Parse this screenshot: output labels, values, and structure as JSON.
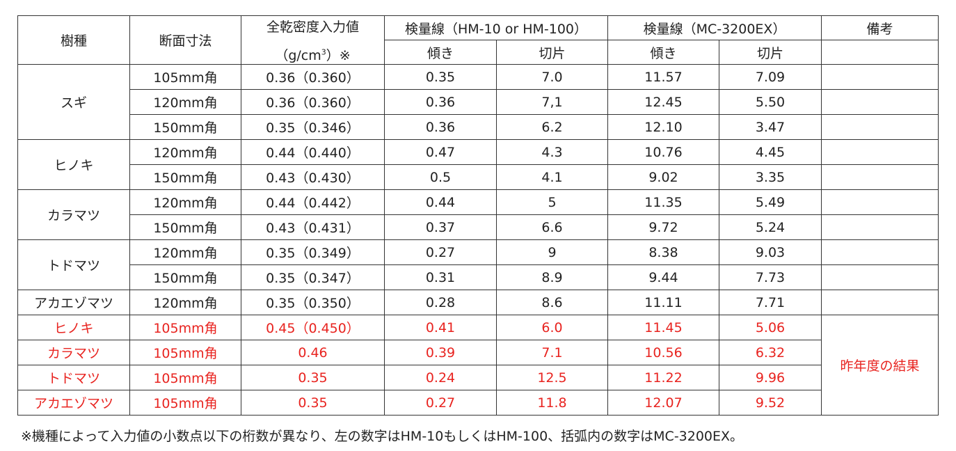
{
  "header": {
    "species": "樹種",
    "section": "断面寸法",
    "density_line1": "全乾密度入力値",
    "density_unit_pre": "（g/cm",
    "density_unit_sup": "3",
    "density_unit_post": "）※",
    "hm": "検量線（HM-10 or HM-100）",
    "mc": "検量線（MC-3200EX）",
    "slope_hm": "傾き",
    "intercept_hm": "切片",
    "slope_mc": "傾き",
    "intercept_mc": "切片",
    "remarks": "備考"
  },
  "groups": [
    {
      "species": "スギ",
      "rows": [
        [
          "105mm角",
          "0.36（0.360）",
          "0.35",
          "7.0",
          "11.57",
          "7.09"
        ],
        [
          "120mm角",
          "0.36（0.360）",
          "0.36",
          "7,1",
          "12.45",
          "5.50"
        ],
        [
          "150mm角",
          "0.35（0.346）",
          "0.36",
          "6.2",
          "12.10",
          "3.47"
        ]
      ]
    },
    {
      "species": "ヒノキ",
      "rows": [
        [
          "120mm角",
          "0.44（0.440）",
          "0.47",
          "4.3",
          "10.76",
          "4.45"
        ],
        [
          "150mm角",
          "0.43（0.430）",
          "0.5",
          "4.1",
          "9.02",
          "3.35"
        ]
      ]
    },
    {
      "species": "カラマツ",
      "rows": [
        [
          "120mm角",
          "0.44（0.442）",
          "0.44",
          "5",
          "11.35",
          "5.49"
        ],
        [
          "150mm角",
          "0.43（0.431）",
          "0.37",
          "6.6",
          "9.72",
          "5.24"
        ]
      ]
    },
    {
      "species": "トドマツ",
      "rows": [
        [
          "120mm角",
          "0.35（0.349）",
          "0.27",
          "9",
          "8.38",
          "9.03"
        ],
        [
          "150mm角",
          "0.35（0.347）",
          "0.31",
          "8.9",
          "9.44",
          "7.73"
        ]
      ]
    },
    {
      "species": "アカエゾマツ",
      "rows": [
        [
          "120mm角",
          "0.35（0.350）",
          "0.28",
          "8.6",
          "11.11",
          "7.71"
        ]
      ]
    }
  ],
  "previous_year_groups": [
    {
      "species": "ヒノキ",
      "rows": [
        [
          "105mm角",
          "0.45（0.450）",
          "0.41",
          "6.0",
          "11.45",
          "5.06"
        ]
      ]
    },
    {
      "species": "カラマツ",
      "rows": [
        [
          "105mm角",
          "0.46",
          "0.39",
          "7.1",
          "10.56",
          "6.32"
        ]
      ]
    },
    {
      "species": "トドマツ",
      "rows": [
        [
          "105mm角",
          "0.35",
          "0.24",
          "12.5",
          "11.22",
          "9.96"
        ]
      ]
    },
    {
      "species": "アカエゾマツ",
      "rows": [
        [
          "105mm角",
          "0.35",
          "0.27",
          "11.8",
          "12.07",
          "9.52"
        ]
      ]
    }
  ],
  "previous_year_note": "昨年度の結果",
  "footnote": "※機種によって入力値の小数点以下の桁数が異なり、左の数字はHM-10もしくはHM-100、括弧内の数字はMC-3200EX。"
}
